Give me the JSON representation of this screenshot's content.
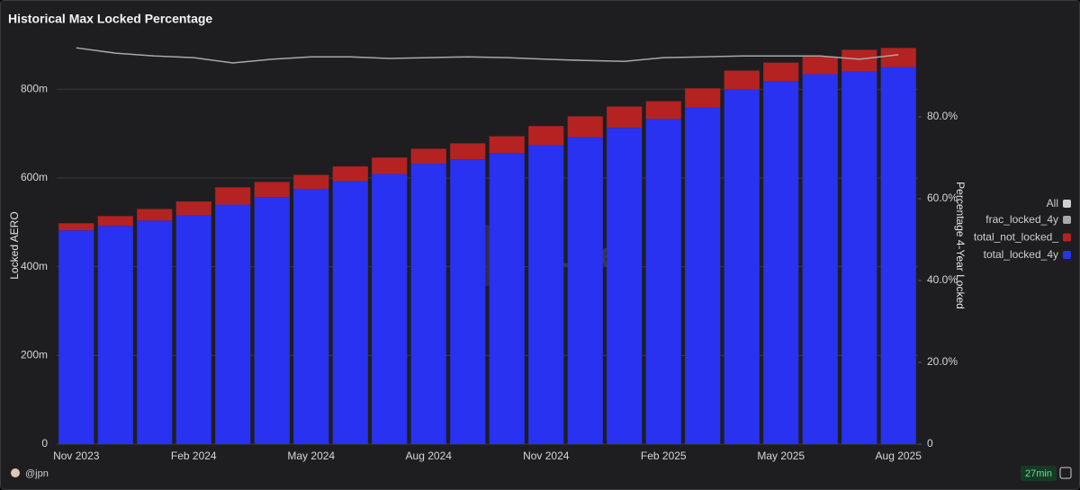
{
  "chart_data": {
    "type": "bar",
    "title": "Historical Max Locked Percentage",
    "y_label": "Locked AERO",
    "y2_label": "Percentage 4-Year Locked",
    "watermark": "Dune",
    "legend_all": "All",
    "legend_all_color": "#cfcfcf",
    "author": "@jpn",
    "refresh": "27min",
    "categories": [
      "Nov 2023",
      null,
      null,
      "Feb 2024",
      null,
      null,
      "May 2024",
      null,
      null,
      "Aug 2024",
      null,
      null,
      "Nov 2024",
      null,
      null,
      "Feb 2025",
      null,
      null,
      "May 2025",
      null,
      null,
      "Aug 2025"
    ],
    "series": [
      {
        "name": "frac_locked_4y",
        "type": "line",
        "axis": "y2",
        "color": "#a8a8a8",
        "values": [
          96.9,
          95.6,
          94.9,
          94.5,
          93.2,
          94.1,
          94.7,
          94.7,
          94.3,
          94.5,
          94.7,
          94.5,
          94.1,
          93.8,
          93.6,
          94.5,
          94.7,
          94.9,
          94.9,
          94.9,
          94.1,
          95.2
        ]
      },
      {
        "name": "total_not_locked_",
        "type": "bar",
        "color": "#b52222",
        "values": [
          16,
          22,
          26,
          31,
          39,
          34,
          32,
          33,
          37,
          34,
          36,
          38,
          43,
          47,
          48,
          40,
          43,
          42,
          42,
          40,
          49,
          43
        ]
      },
      {
        "name": "total_locked_4y",
        "type": "bar",
        "color": "#2832f0",
        "values": [
          482,
          492,
          504,
          516,
          540,
          557,
          575,
          593,
          609,
          632,
          642,
          656,
          674,
          692,
          713,
          733,
          759,
          800,
          818,
          834,
          840,
          850
        ]
      }
    ],
    "ylim": [
      0,
      910
    ],
    "yticks": [
      0,
      {
        "value": 200,
        "label": "200m"
      },
      {
        "value": 400,
        "label": "400m"
      },
      {
        "value": 600,
        "label": "600m"
      },
      {
        "value": 800,
        "label": "800m"
      }
    ],
    "y2lim": [
      0,
      98.7
    ],
    "y2ticks": [
      0,
      {
        "value": 20,
        "label": "20.0%"
      },
      {
        "value": 40,
        "label": "40.0%"
      },
      {
        "value": 60,
        "label": "60.0%"
      },
      {
        "value": 80,
        "label": "80.0%"
      }
    ],
    "grid": true
  }
}
